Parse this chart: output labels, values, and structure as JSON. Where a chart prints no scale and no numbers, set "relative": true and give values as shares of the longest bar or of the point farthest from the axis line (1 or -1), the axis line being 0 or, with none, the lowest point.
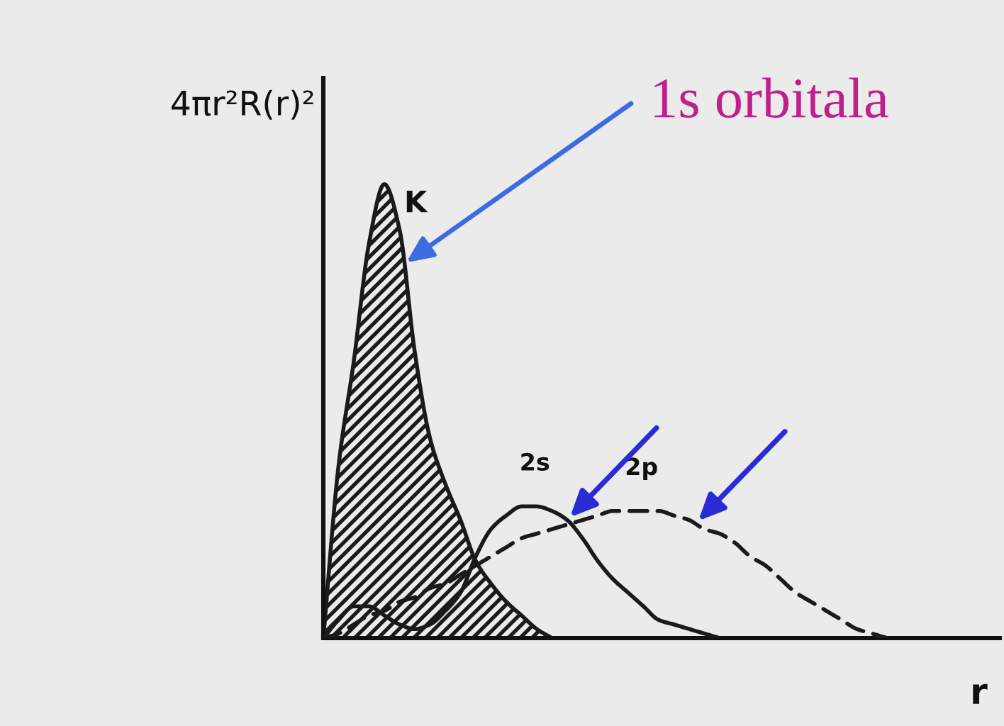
{
  "chart_data": {
    "type": "line",
    "relative": true,
    "ylabel": "4πr²R(r)²",
    "xlabel": "r",
    "categories": [
      null,
      null,
      null,
      null,
      null,
      null,
      null,
      null,
      null,
      null,
      null,
      null,
      null,
      null,
      null,
      null,
      null,
      null,
      null,
      null,
      null,
      null,
      null,
      null,
      null,
      null,
      null,
      null,
      null,
      null,
      null,
      null,
      null,
      null,
      null,
      null,
      null,
      null,
      null,
      null,
      null,
      null,
      null,
      null,
      null
    ],
    "series": [
      {
        "name": "K",
        "type": "area",
        "color": "#1a1a1a",
        "values": [
          0,
          0.38,
          0.61,
          0.87,
          1,
          0.9,
          0.63,
          0.44,
          0.34,
          0.26,
          0.17,
          0.12,
          0.08,
          0.05,
          0.02,
          0,
          null,
          null,
          null,
          null,
          null,
          null,
          null,
          null,
          null,
          null,
          null,
          null,
          null,
          null,
          null,
          null,
          null,
          null,
          null,
          null,
          null,
          null,
          null,
          null,
          null,
          null,
          null,
          null,
          null
        ]
      },
      {
        "name": "2s",
        "color": "#1a1a1a",
        "values": [
          0,
          0.04,
          0.07,
          0.07,
          0.05,
          0.03,
          0.02,
          0.03,
          0.06,
          0.1,
          0.18,
          0.24,
          0.27,
          0.29,
          0.29,
          0.28,
          0.26,
          0.22,
          0.17,
          0.13,
          0.1,
          0.07,
          0.04,
          0.03,
          0.02,
          0.01,
          0,
          null,
          null,
          null,
          null,
          null,
          null,
          null,
          null,
          null,
          null,
          null,
          null,
          null,
          null,
          null,
          null,
          null,
          null
        ]
      },
      {
        "name": "2p",
        "color": "#1a1a1a",
        "line_style": "dashed",
        "values": [
          0,
          0.01,
          0.03,
          0.05,
          0.06,
          0.08,
          0.09,
          0.11,
          0.12,
          0.14,
          0.16,
          0.18,
          0.2,
          0.22,
          0.23,
          0.24,
          0.25,
          0.26,
          0.27,
          0.28,
          0.28,
          0.28,
          0.28,
          0.27,
          0.26,
          0.24,
          0.23,
          0.21,
          0.18,
          0.16,
          0.13,
          0.1,
          0.08,
          0.06,
          0.04,
          0.02,
          0.01,
          0,
          null,
          null,
          null,
          null,
          null,
          null,
          null
        ]
      }
    ],
    "annotations": [
      "1s orbitala"
    ]
  }
}
